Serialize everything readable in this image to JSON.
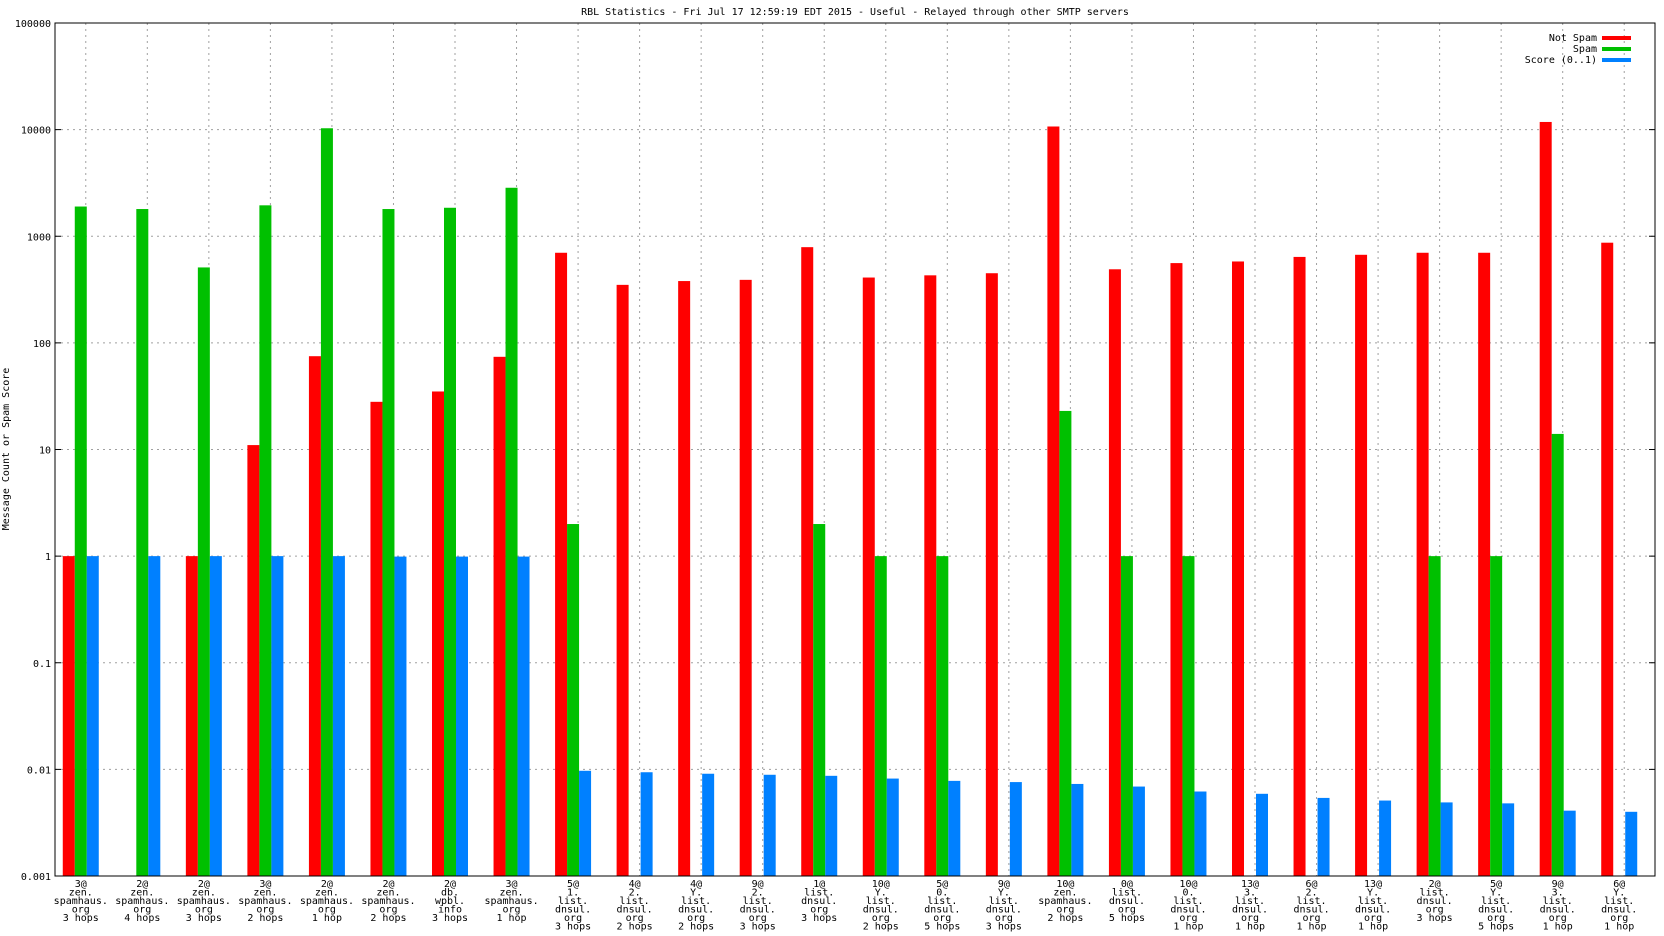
{
  "chart_data": {
    "type": "bar",
    "title": "RBL Statistics - Fri Jul 17 12:59:19 EDT 2015 - Useful - Relayed through other SMTP servers",
    "ylabel": "Message Count or Spam Score",
    "xlabel": "",
    "yscale": "log",
    "ylim": [
      0.001,
      100000
    ],
    "yticks": [
      "0.001",
      "0.01",
      "0.1",
      "1",
      "10",
      "100",
      "1000",
      "10000",
      "100000"
    ],
    "grid": true,
    "legend_position": "top-right",
    "categories": [
      [
        "3@",
        "zen.",
        "spamhaus.",
        "org",
        "3 hops"
      ],
      [
        "2@",
        "zen.",
        "spamhaus.",
        "org",
        "4 hops"
      ],
      [
        "2@",
        "zen.",
        "spamhaus.",
        "org",
        "3 hops"
      ],
      [
        "3@",
        "zen.",
        "spamhaus.",
        "org",
        "2 hops"
      ],
      [
        "2@",
        "zen.",
        "spamhaus.",
        "org",
        "1 hop"
      ],
      [
        "2@",
        "zen.",
        "spamhaus.",
        "org",
        "2 hops"
      ],
      [
        "2@",
        "db.",
        "wpbl.",
        "info",
        "3 hops"
      ],
      [
        "3@",
        "zen.",
        "spamhaus.",
        "org",
        "1 hop"
      ],
      [
        "5@",
        "1.",
        "list.",
        "dnsul.",
        "org",
        "3 hops"
      ],
      [
        "4@",
        "2.",
        "list.",
        "dnsul.",
        "org",
        "2 hops"
      ],
      [
        "4@",
        "Y.",
        "list.",
        "dnsul.",
        "org",
        "2 hops"
      ],
      [
        "9@",
        "2.",
        "list.",
        "dnsul.",
        "org",
        "3 hops"
      ],
      [
        "1@",
        "list.",
        "dnsul.",
        "org",
        "3 hops"
      ],
      [
        "10@",
        "Y.",
        "list.",
        "dnsul.",
        "org",
        "2 hops"
      ],
      [
        "5@",
        "0.",
        "list.",
        "dnsul.",
        "org",
        "5 hops"
      ],
      [
        "9@",
        "Y.",
        "list.",
        "dnsul.",
        "org",
        "3 hops"
      ],
      [
        "10@",
        "zen.",
        "spamhaus.",
        "org",
        "2 hops"
      ],
      [
        "0@",
        "list.",
        "dnsul.",
        "org",
        "5 hops"
      ],
      [
        "10@",
        "0.",
        "list.",
        "dnsul.",
        "org",
        "1 hop"
      ],
      [
        "13@",
        "3.",
        "list.",
        "dnsul.",
        "org",
        "1 hop"
      ],
      [
        "6@",
        "2.",
        "list.",
        "dnsul.",
        "org",
        "1 hop"
      ],
      [
        "13@",
        "Y.",
        "list.",
        "dnsul.",
        "org",
        "1 hop"
      ],
      [
        "2@",
        "list.",
        "dnsul.",
        "org",
        "3 hops"
      ],
      [
        "5@",
        "Y.",
        "list.",
        "dnsul.",
        "org",
        "5 hops"
      ],
      [
        "9@",
        "3.",
        "list.",
        "dnsul.",
        "org",
        "1 hop"
      ],
      [
        "6@",
        "Y.",
        "list.",
        "dnsul.",
        "org",
        "1 hop"
      ]
    ],
    "series": [
      {
        "name": "Not Spam",
        "color": "#ff0000",
        "values": [
          1,
          null,
          1,
          11,
          75,
          28,
          35,
          74,
          700,
          350,
          380,
          390,
          790,
          410,
          430,
          450,
          10700,
          490,
          560,
          580,
          640,
          670,
          700,
          700,
          11800,
          870
        ]
      },
      {
        "name": "Spam",
        "color": "#00c000",
        "values": [
          1900,
          1800,
          510,
          1950,
          10300,
          1800,
          1850,
          2850,
          2,
          null,
          null,
          null,
          2,
          1,
          1,
          null,
          23,
          1,
          1,
          null,
          null,
          null,
          1,
          1,
          14,
          null
        ]
      },
      {
        "name": "Score (0..1)",
        "color": "#0080ff",
        "values": [
          1,
          1,
          1,
          1,
          1,
          0.99,
          0.99,
          0.99,
          0.0097,
          0.0094,
          0.0091,
          0.0089,
          0.0087,
          0.0082,
          0.0078,
          0.0076,
          0.0073,
          0.0069,
          0.0062,
          0.0059,
          0.0054,
          0.0051,
          0.0049,
          0.0048,
          0.0041,
          0.004
        ]
      }
    ]
  }
}
